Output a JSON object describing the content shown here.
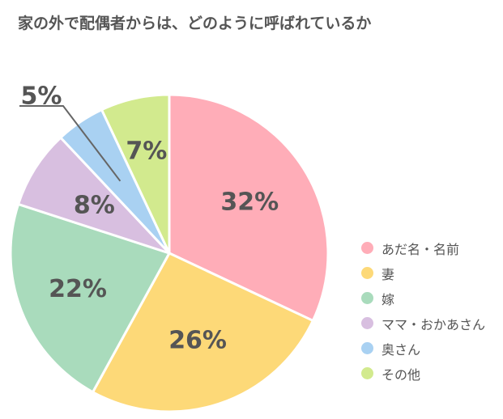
{
  "title": "家の外で配偶者からは、どのように呼ばれているか",
  "chart_data": {
    "type": "pie",
    "title": "家の外で配偶者からは、どのように呼ばれているか",
    "slices": [
      {
        "label": "あだ名・名前",
        "value": 32,
        "display": "32%",
        "color": "#ffadb8"
      },
      {
        "label": "妻",
        "value": 26,
        "display": "26%",
        "color": "#fdd978"
      },
      {
        "label": "嫁",
        "value": 22,
        "display": "22%",
        "color": "#a9dbbc"
      },
      {
        "label": "ママ・おかあさん",
        "value": 8,
        "display": "8%",
        "color": "#d8bfe0"
      },
      {
        "label": "奥さん",
        "value": 5,
        "display": "5%",
        "color": "#a9d1f2"
      },
      {
        "label": "その他",
        "value": 7,
        "display": "7%",
        "color": "#d2ea8e"
      }
    ],
    "start_angle": "12 o'clock",
    "direction": "clockwise",
    "legend_position": "right"
  }
}
